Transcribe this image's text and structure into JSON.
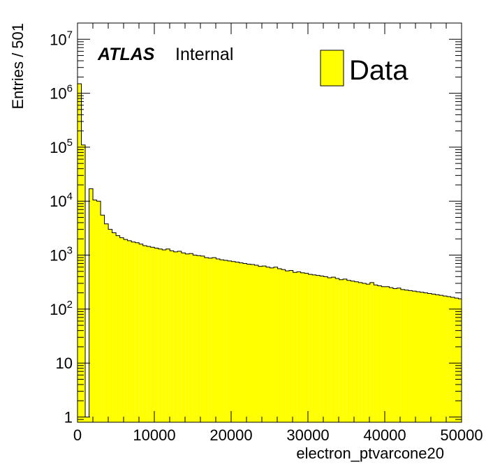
{
  "chart_data": {
    "type": "bar",
    "style": "histogram",
    "fill_color": "#ffff00",
    "line_color": "#000000",
    "x_scale": "linear",
    "y_scale": "log",
    "xlim": [
      0,
      50000
    ],
    "ylim": [
      0.8,
      20000000
    ],
    "xlabel": "electron_ptvarcone20",
    "ylabel": "Entries / 501",
    "x_ticks": [
      "0",
      "10000",
      "20000",
      "30000",
      "40000",
      "50000"
    ],
    "y_ticks": [
      {
        "value": 1,
        "base": "1",
        "exp": ""
      },
      {
        "value": 10,
        "base": "10",
        "exp": ""
      },
      {
        "value": 100,
        "base": "10",
        "exp": "2"
      },
      {
        "value": 1000,
        "base": "10",
        "exp": "3"
      },
      {
        "value": 10000,
        "base": "10",
        "exp": "4"
      },
      {
        "value": 100000,
        "base": "10",
        "exp": "5"
      },
      {
        "value": 1000000,
        "base": "10",
        "exp": "6"
      },
      {
        "value": 10000000,
        "base": "10",
        "exp": "7"
      }
    ],
    "bin_width": 501,
    "bins": [
      [
        0,
        1500000
      ],
      [
        501,
        110000
      ],
      [
        1002,
        1
      ],
      [
        1503,
        17000
      ],
      [
        2004,
        10500
      ],
      [
        2505,
        10000
      ],
      [
        3006,
        5500
      ],
      [
        3507,
        3800
      ],
      [
        4008,
        3000
      ],
      [
        4509,
        2600
      ],
      [
        5010,
        2300
      ],
      [
        5511,
        2100
      ],
      [
        6012,
        1950
      ],
      [
        6513,
        1850
      ],
      [
        7014,
        1750
      ],
      [
        7515,
        1700
      ],
      [
        8016,
        1600
      ],
      [
        8517,
        1500
      ],
      [
        9018,
        1450
      ],
      [
        9519,
        1400
      ],
      [
        10020,
        1350
      ],
      [
        10521,
        1300
      ],
      [
        11022,
        1250
      ],
      [
        11523,
        1300
      ],
      [
        12024,
        1200
      ],
      [
        12525,
        1150
      ],
      [
        13026,
        1180
      ],
      [
        13527,
        1100
      ],
      [
        14028,
        1050
      ],
      [
        14529,
        1070
      ],
      [
        15030,
        1000
      ],
      [
        15531,
        980
      ],
      [
        16032,
        960
      ],
      [
        16533,
        900
      ],
      [
        17034,
        880
      ],
      [
        17535,
        900
      ],
      [
        18036,
        850
      ],
      [
        18537,
        820
      ],
      [
        19038,
        800
      ],
      [
        19539,
        780
      ],
      [
        20040,
        760
      ],
      [
        20541,
        740
      ],
      [
        21042,
        720
      ],
      [
        21543,
        700
      ],
      [
        22044,
        680
      ],
      [
        22545,
        670
      ],
      [
        23046,
        650
      ],
      [
        23547,
        620
      ],
      [
        24048,
        630
      ],
      [
        24549,
        600
      ],
      [
        25050,
        580
      ],
      [
        25551,
        600
      ],
      [
        26052,
        560
      ],
      [
        26553,
        540
      ],
      [
        27054,
        510
      ],
      [
        27555,
        520
      ],
      [
        28056,
        480
      ],
      [
        28557,
        490
      ],
      [
        29058,
        470
      ],
      [
        29559,
        460
      ],
      [
        30060,
        440
      ],
      [
        30561,
        430
      ],
      [
        31062,
        420
      ],
      [
        31563,
        410
      ],
      [
        32064,
        400
      ],
      [
        32565,
        380
      ],
      [
        33066,
        390
      ],
      [
        33567,
        370
      ],
      [
        34068,
        350
      ],
      [
        34569,
        360
      ],
      [
        35070,
        340
      ],
      [
        35571,
        330
      ],
      [
        36072,
        320
      ],
      [
        36573,
        310
      ],
      [
        37074,
        300
      ],
      [
        37575,
        290
      ],
      [
        38076,
        310
      ],
      [
        38577,
        280
      ],
      [
        39078,
        270
      ],
      [
        39579,
        260
      ],
      [
        40080,
        260
      ],
      [
        40581,
        250
      ],
      [
        41082,
        240
      ],
      [
        41583,
        245
      ],
      [
        42084,
        230
      ],
      [
        42585,
        225
      ],
      [
        43086,
        220
      ],
      [
        43587,
        215
      ],
      [
        44088,
        210
      ],
      [
        44589,
        205
      ],
      [
        45090,
        200
      ],
      [
        45591,
        195
      ],
      [
        46092,
        190
      ],
      [
        46593,
        185
      ],
      [
        47094,
        180
      ],
      [
        47595,
        175
      ],
      [
        48096,
        170
      ],
      [
        48597,
        165
      ],
      [
        49098,
        160
      ],
      [
        49599,
        155
      ]
    ]
  },
  "labels": {
    "atlas": "ATLAS",
    "internal": "Internal",
    "legend_entry": "Data"
  }
}
